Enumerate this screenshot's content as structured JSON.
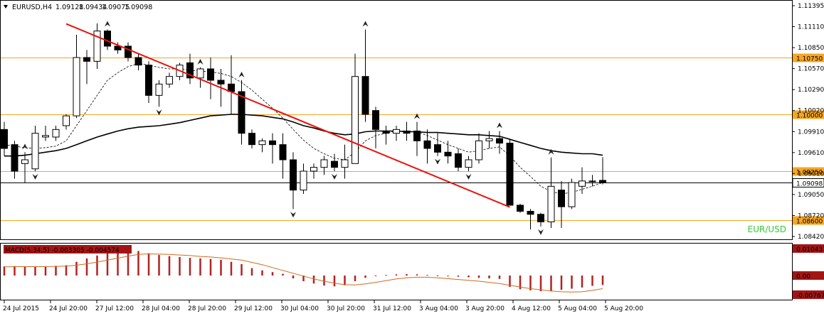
{
  "chart_data": [
    {
      "type": "candlestick",
      "header": {
        "symbol": "EURUSD,H4",
        "ohlc": [
          "1.09128",
          "1.09434",
          "1.09075",
          "1.09098"
        ]
      },
      "watermark": "EUR/USD",
      "y_axis": {
        "range": [
          1.0835,
          1.115
        ],
        "ticks": [
          "1.11395",
          "1.11110",
          "1.10850",
          "1.10570",
          "1.10290",
          "1.10020",
          "1.09910",
          "1.09610",
          "1.09310",
          "1.09050",
          "1.08720",
          "1.08420"
        ]
      },
      "x_labels": [
        "24 Jul 2015",
        "24 Jul 20:00",
        "27 Jul 12:00",
        "28 Jul 04:00",
        "28 Jul 20:00",
        "29 Jul 12:00",
        "30 Jul 04:00",
        "30 Jul 20:00",
        "31 Jul 12:00",
        "3 Aug 04:00",
        "3 Aug 20:00",
        "4 Aug 12:00",
        "5 Aug 04:00",
        "5 Aug 20:00"
      ],
      "horizontal_levels": [
        {
          "value": 1.1075,
          "label": "1.10750",
          "color": "#f5a623",
          "style": "solid"
        },
        {
          "value": 1.1,
          "label": "1.10000",
          "color": "#f5a623",
          "style": "solid"
        },
        {
          "value": 1.0925,
          "label": "1.09250",
          "color": "#f5a623",
          "style": "solid"
        },
        {
          "value": 1.086,
          "label": "1.08600",
          "color": "#f5a623",
          "style": "solid"
        },
        {
          "value": 1.09098,
          "label": "1.09098",
          "color": "#000000",
          "style": "current"
        }
      ],
      "trendline": {
        "from": [
          6,
          1.11195
        ],
        "to": [
          49,
          1.08775
        ],
        "color": "#e8120c"
      },
      "candles": [
        {
          "o": 1.098,
          "h": 1.099,
          "l": 1.0945,
          "c": 1.0955
        },
        {
          "o": 1.096,
          "h": 1.0965,
          "l": 1.0915,
          "c": 1.0925
        },
        {
          "o": 1.0935,
          "h": 1.095,
          "l": 1.091,
          "c": 1.094
        },
        {
          "o": 1.0928,
          "h": 1.0985,
          "l": 1.0925,
          "c": 1.0975
        },
        {
          "o": 1.097,
          "h": 1.0985,
          "l": 1.0965,
          "c": 1.0972
        },
        {
          "o": 1.097,
          "h": 1.0985,
          "l": 1.0965,
          "c": 1.098
        },
        {
          "o": 1.0985,
          "h": 1.1,
          "l": 1.098,
          "c": 1.0998
        },
        {
          "o": 1.0998,
          "h": 1.1105,
          "l": 1.0995,
          "c": 1.1075
        },
        {
          "o": 1.1075,
          "h": 1.1085,
          "l": 1.104,
          "c": 1.107
        },
        {
          "o": 1.107,
          "h": 1.112,
          "l": 1.106,
          "c": 1.111
        },
        {
          "o": 1.111,
          "h": 1.1112,
          "l": 1.1085,
          "c": 1.109
        },
        {
          "o": 1.109,
          "h": 1.1095,
          "l": 1.108,
          "c": 1.1085
        },
        {
          "o": 1.109,
          "h": 1.1095,
          "l": 1.107,
          "c": 1.1075
        },
        {
          "o": 1.1075,
          "h": 1.108,
          "l": 1.1058,
          "c": 1.1065
        },
        {
          "o": 1.1065,
          "h": 1.107,
          "l": 1.1015,
          "c": 1.1025
        },
        {
          "o": 1.1025,
          "h": 1.1045,
          "l": 1.101,
          "c": 1.104
        },
        {
          "o": 1.104,
          "h": 1.1055,
          "l": 1.1035,
          "c": 1.105
        },
        {
          "o": 1.105,
          "h": 1.1068,
          "l": 1.1045,
          "c": 1.1065
        },
        {
          "o": 1.1068,
          "h": 1.108,
          "l": 1.104,
          "c": 1.1048
        },
        {
          "o": 1.1048,
          "h": 1.1062,
          "l": 1.1035,
          "c": 1.106
        },
        {
          "o": 1.106,
          "h": 1.1075,
          "l": 1.102,
          "c": 1.1045
        },
        {
          "o": 1.1045,
          "h": 1.106,
          "l": 1.101,
          "c": 1.104
        },
        {
          "o": 1.104,
          "h": 1.1078,
          "l": 1.1,
          "c": 1.103
        },
        {
          "o": 1.103,
          "h": 1.1045,
          "l": 1.096,
          "c": 1.0975
        },
        {
          "o": 1.0975,
          "h": 1.098,
          "l": 1.0955,
          "c": 1.096
        },
        {
          "o": 1.096,
          "h": 1.0968,
          "l": 1.095,
          "c": 1.0965
        },
        {
          "o": 1.0965,
          "h": 1.0975,
          "l": 1.0935,
          "c": 1.096
        },
        {
          "o": 1.096,
          "h": 1.0975,
          "l": 1.0915,
          "c": 1.094
        },
        {
          "o": 1.094,
          "h": 1.095,
          "l": 1.0875,
          "c": 1.09
        },
        {
          "o": 1.09,
          "h": 1.0935,
          "l": 1.0895,
          "c": 1.0925
        },
        {
          "o": 1.0925,
          "h": 1.0935,
          "l": 1.0915,
          "c": 1.093
        },
        {
          "o": 1.093,
          "h": 1.0945,
          "l": 1.092,
          "c": 1.094
        },
        {
          "o": 1.0938,
          "h": 1.0948,
          "l": 1.0925,
          "c": 1.093
        },
        {
          "o": 1.093,
          "h": 1.096,
          "l": 1.0915,
          "c": 1.094
        },
        {
          "o": 1.0935,
          "h": 1.108,
          "l": 1.0935,
          "c": 1.105
        },
        {
          "o": 1.105,
          "h": 1.1112,
          "l": 1.099,
          "c": 1.1
        },
        {
          "o": 1.1005,
          "h": 1.101,
          "l": 1.0955,
          "c": 1.098
        },
        {
          "o": 1.0978,
          "h": 1.0985,
          "l": 1.096,
          "c": 1.0975
        },
        {
          "o": 1.0975,
          "h": 1.0985,
          "l": 1.0965,
          "c": 1.098
        },
        {
          "o": 1.0978,
          "h": 1.099,
          "l": 1.0965,
          "c": 1.0975
        },
        {
          "o": 1.0978,
          "h": 1.099,
          "l": 1.0945,
          "c": 1.0965
        },
        {
          "o": 1.0965,
          "h": 1.098,
          "l": 1.0935,
          "c": 1.0955
        },
        {
          "o": 1.096,
          "h": 1.0975,
          "l": 1.0945,
          "c": 1.095
        },
        {
          "o": 1.095,
          "h": 1.0965,
          "l": 1.0935,
          "c": 1.0945
        },
        {
          "o": 1.0948,
          "h": 1.0955,
          "l": 1.0925,
          "c": 1.093
        },
        {
          "o": 1.093,
          "h": 1.0945,
          "l": 1.0925,
          "c": 1.094
        },
        {
          "o": 1.094,
          "h": 1.0975,
          "l": 1.0935,
          "c": 1.0965
        },
        {
          "o": 1.0965,
          "h": 1.0978,
          "l": 1.0955,
          "c": 1.0968
        },
        {
          "o": 1.0968,
          "h": 1.0978,
          "l": 1.0948,
          "c": 1.0962
        },
        {
          "o": 1.0962,
          "h": 1.0968,
          "l": 1.088,
          "c": 1.088
        },
        {
          "o": 1.088,
          "h": 1.0882,
          "l": 1.087,
          "c": 1.0872
        },
        {
          "o": 1.0872,
          "h": 1.0875,
          "l": 1.0848,
          "c": 1.0868
        },
        {
          "o": 1.0868,
          "h": 1.087,
          "l": 1.0852,
          "c": 1.0858
        },
        {
          "o": 1.0858,
          "h": 1.0943,
          "l": 1.085,
          "c": 1.0905
        },
        {
          "o": 1.09,
          "h": 1.0912,
          "l": 1.085,
          "c": 1.0878
        },
        {
          "o": 1.0878,
          "h": 1.0915,
          "l": 1.0875,
          "c": 1.091
        },
        {
          "o": 1.0905,
          "h": 1.093,
          "l": 1.0895,
          "c": 1.0912
        },
        {
          "o": 1.0912,
          "h": 1.092,
          "l": 1.0905,
          "c": 1.0912
        },
        {
          "o": 1.09128,
          "h": 1.09434,
          "l": 1.09075,
          "c": 1.09098
        }
      ],
      "fractals_up": [
        2,
        10,
        19,
        23,
        35,
        40,
        48,
        53
      ],
      "fractals_down": [
        3,
        15,
        28,
        32,
        42,
        45,
        52
      ],
      "ma_slow": [
        1.0945,
        1.0945,
        1.0946,
        1.0948,
        1.095,
        1.0952,
        1.0955,
        1.096,
        1.0965,
        1.097,
        1.0974,
        1.0978,
        1.0981,
        1.0983,
        1.0984,
        1.0985,
        1.0987,
        1.0989,
        1.0992,
        1.0995,
        1.0998,
        1.0999,
        1.1,
        1.1,
        1.0999,
        1.0998,
        1.0996,
        1.0994,
        1.099,
        1.0985,
        1.0982,
        1.0978,
        1.0975,
        1.0973,
        1.0974,
        1.0977,
        1.0978,
        1.0978,
        1.0978,
        1.0977,
        1.0977,
        1.0976,
        1.0976,
        1.0975,
        1.0974,
        1.0973,
        1.0973,
        1.0972,
        1.0971,
        1.0967,
        1.0963,
        1.0959,
        1.0955,
        1.0952,
        1.095,
        1.0949,
        1.0948,
        1.0948,
        1.0946
      ],
      "ma_fast": [
        1.096,
        1.0958,
        1.0956,
        1.0955,
        1.0956,
        1.0958,
        1.0965,
        1.0985,
        1.1005,
        1.1025,
        1.1045,
        1.1055,
        1.1063,
        1.1067,
        1.1065,
        1.1062,
        1.106,
        1.106,
        1.1058,
        1.1057,
        1.1056,
        1.1054,
        1.105,
        1.1042,
        1.1032,
        1.102,
        1.1008,
        1.0995,
        1.098,
        1.0966,
        1.0955,
        1.0948,
        1.0942,
        1.094,
        1.095,
        1.0965,
        1.0972,
        1.0975,
        1.0978,
        1.0978,
        1.0977,
        1.0972,
        1.0966,
        1.096,
        1.0955,
        1.095,
        1.0952,
        1.0955,
        1.0957,
        1.0945,
        1.093,
        1.0918,
        1.0905,
        1.0898,
        1.0895,
        1.0897,
        1.0901,
        1.0905,
        1.091
      ],
      "macd": {
        "label": "MACD(5,34,5) -0.003305 -0.004574",
        "ticks": [
          "0.010437",
          "0.00",
          "-0.007671"
        ],
        "range": [
          -0.0085,
          0.0112
        ],
        "histogram": [
          0.0032,
          0.0033,
          0.0032,
          0.0031,
          0.0032,
          0.0034,
          0.0036,
          0.0048,
          0.006,
          0.007,
          0.008,
          0.0086,
          0.009,
          0.0086,
          0.0078,
          0.0072,
          0.0068,
          0.0065,
          0.0062,
          0.006,
          0.0058,
          0.0055,
          0.0048,
          0.004,
          0.0026,
          0.0018,
          0.0012,
          0.0006,
          -0.001,
          -0.002,
          -0.0028,
          -0.0035,
          -0.0038,
          -0.0034,
          -0.002,
          -0.0008,
          -0.0002,
          0.0002,
          0.0004,
          0.0005,
          0.0004,
          0.0002,
          0.0,
          -0.0002,
          -0.0004,
          -0.0006,
          -0.0008,
          -0.001,
          -0.0012,
          -0.004,
          -0.0048,
          -0.0052,
          -0.0055,
          -0.0055,
          -0.005,
          -0.0046,
          -0.0042,
          -0.0036,
          -0.0033
        ],
        "signal": [
          0.003,
          0.0031,
          0.0031,
          0.0031,
          0.0031,
          0.0032,
          0.0033,
          0.0036,
          0.0041,
          0.0047,
          0.0054,
          0.0061,
          0.0068,
          0.0074,
          0.0076,
          0.0075,
          0.0074,
          0.0072,
          0.007,
          0.0067,
          0.0065,
          0.0062,
          0.0058,
          0.0054,
          0.0046,
          0.0038,
          0.0028,
          0.0018,
          0.0008,
          -0.0002,
          -0.0012,
          -0.002,
          -0.0027,
          -0.0032,
          -0.0033,
          -0.0029,
          -0.0024,
          -0.0018,
          -0.0012,
          -0.0008,
          -0.0006,
          -0.0006,
          -0.0008,
          -0.0011,
          -0.0014,
          -0.0017,
          -0.002,
          -0.0024,
          -0.0028,
          -0.0034,
          -0.004,
          -0.0046,
          -0.005,
          -0.0054,
          -0.0057,
          -0.0058,
          -0.0057,
          -0.0052,
          -0.0046
        ]
      }
    }
  ]
}
